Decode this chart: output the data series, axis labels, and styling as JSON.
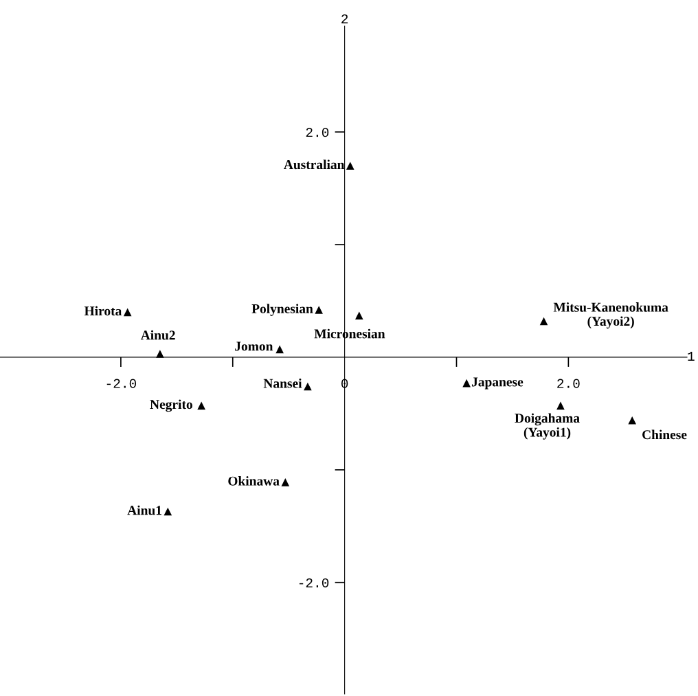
{
  "chart_data": {
    "type": "scatter",
    "xlabel": "1",
    "ylabel": "2",
    "marker": "triangle",
    "xlim": [
      -3.08,
      3.06
    ],
    "ylim": [
      -2.99,
      2.94
    ],
    "xticks": [
      {
        "value": -2,
        "label": "-2.0"
      },
      {
        "value": -1,
        "label": null
      },
      0,
      {
        "value": 1,
        "label": null
      },
      {
        "value": 2,
        "label": "2.0"
      }
    ],
    "yticks": [
      {
        "value": -2,
        "label": "-2.0"
      },
      {
        "value": -1,
        "label": null
      },
      {
        "value": 1,
        "label": null
      },
      {
        "value": 2,
        "label": "2.0"
      }
    ],
    "series": [
      {
        "name": "Australian",
        "color": "#000000",
        "x": [
          0.05
        ],
        "values": [
          1.7
        ]
      },
      {
        "name": "Hirota",
        "color": "#000000",
        "x": [
          -1.94
        ],
        "values": [
          0.4
        ]
      },
      {
        "name": "Polynesian",
        "color": "#000000",
        "x": [
          -0.23
        ],
        "values": [
          0.42
        ]
      },
      {
        "name": "Micronesian",
        "color": "#000000",
        "x": [
          0.13
        ],
        "values": [
          0.37
        ]
      },
      {
        "name": "Mitsu-Kanenokuma\n(Yayoi2)",
        "color": "#000000",
        "x": [
          1.78
        ],
        "values": [
          0.32
        ]
      },
      {
        "name": "Ainu2",
        "color": "#000000",
        "x": [
          -1.65
        ],
        "values": [
          0.03
        ]
      },
      {
        "name": "Jomon",
        "color": "#000000",
        "x": [
          -0.58
        ],
        "values": [
          0.07
        ]
      },
      {
        "name": "Nansei",
        "color": "#000000",
        "x": [
          -0.33
        ],
        "values": [
          -0.26
        ]
      },
      {
        "name": "Japanese",
        "color": "#000000",
        "x": [
          1.09
        ],
        "values": [
          -0.23
        ]
      },
      {
        "name": "Negrito",
        "color": "#000000",
        "x": [
          -1.28
        ],
        "values": [
          -0.43
        ]
      },
      {
        "name": "Doigahama\n(Yayoi1)",
        "color": "#000000",
        "x": [
          1.93
        ],
        "values": [
          -0.43
        ]
      },
      {
        "name": "Chinese",
        "color": "#000000",
        "x": [
          2.57
        ],
        "values": [
          -0.56
        ]
      },
      {
        "name": "Okinawa",
        "color": "#000000",
        "x": [
          -0.53
        ],
        "values": [
          -1.11
        ]
      },
      {
        "name": "Ainu1",
        "color": "#000000",
        "x": [
          -1.58
        ],
        "values": [
          -1.37
        ]
      }
    ]
  }
}
